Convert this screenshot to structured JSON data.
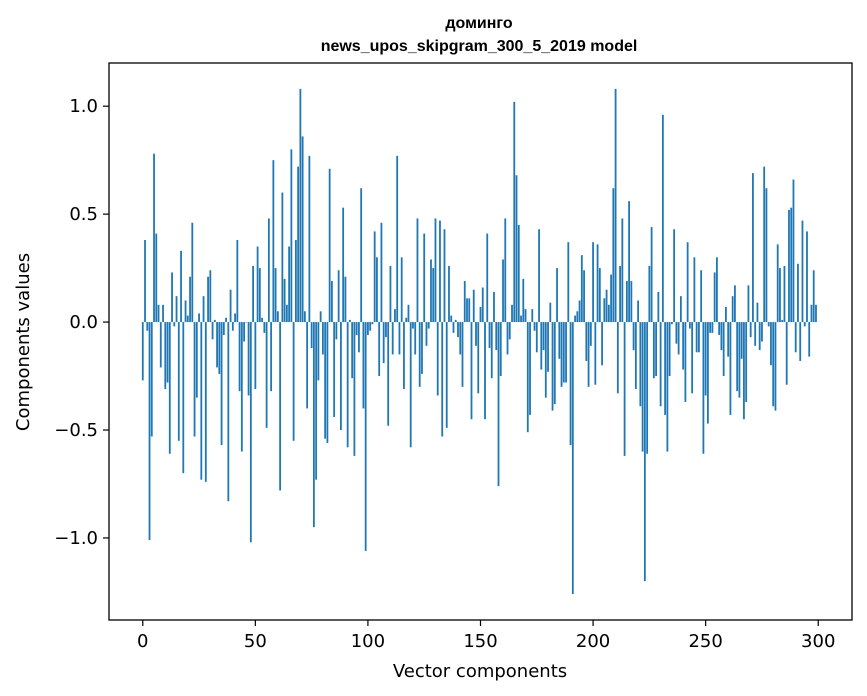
{
  "chart_data": {
    "type": "bar",
    "title_lines": [
      "доминго",
      "news_upos_skipgram_300_5_2019 model"
    ],
    "xlabel": "Vector components",
    "ylabel": "Components values",
    "xlim": [
      -15,
      315
    ],
    "ylim": [
      -1.38,
      1.2
    ],
    "xticks": [
      {
        "value": 0,
        "label": "0"
      },
      {
        "value": 50,
        "label": "50"
      },
      {
        "value": 100,
        "label": "100"
      },
      {
        "value": 150,
        "label": "150"
      },
      {
        "value": 200,
        "label": "200"
      },
      {
        "value": 250,
        "label": "250"
      },
      {
        "value": 300,
        "label": "300"
      }
    ],
    "yticks": [
      {
        "value": 1.0,
        "label": "1.0"
      },
      {
        "value": 0.5,
        "label": "0.5"
      },
      {
        "value": 0.0,
        "label": "0.0"
      },
      {
        "value": -0.5,
        "label": "−0.5"
      },
      {
        "value": -1.0,
        "label": "−1.0"
      }
    ],
    "grid": false,
    "bar_color": "#1f77b4",
    "values": [
      -0.27,
      0.38,
      -0.04,
      -1.01,
      -0.53,
      0.78,
      0.41,
      0.08,
      -0.21,
      0.08,
      -0.31,
      -0.28,
      -0.61,
      0.23,
      -0.02,
      0.12,
      -0.55,
      0.33,
      -0.7,
      0.1,
      0.03,
      0.21,
      0.46,
      -0.53,
      -0.35,
      0.04,
      -0.73,
      0.12,
      -0.74,
      0.21,
      0.24,
      -0.08,
      0.01,
      -0.21,
      -0.24,
      -0.57,
      -0.06,
      0.02,
      -0.83,
      0.15,
      -0.04,
      0.04,
      0.38,
      -0.32,
      -0.6,
      -0.09,
      0.0,
      -0.34,
      -1.02,
      0.26,
      -0.31,
      0.35,
      0.25,
      0.02,
      -0.05,
      -0.49,
      0.48,
      -0.32,
      0.75,
      0.25,
      0.05,
      -0.78,
      0.6,
      0.2,
      0.08,
      0.35,
      0.8,
      -0.55,
      0.38,
      0.72,
      1.08,
      0.86,
      0.05,
      -0.4,
      0.77,
      -0.12,
      -0.95,
      -0.73,
      -0.27,
      0.05,
      -0.15,
      -0.54,
      -0.56,
      0.71,
      0.19,
      -0.44,
      -0.08,
      0.24,
      -0.5,
      0.53,
      0.21,
      -0.58,
      0.01,
      -0.26,
      -0.62,
      -0.06,
      -0.14,
      0.62,
      -0.4,
      -1.06,
      -0.06,
      -0.04,
      -0.01,
      0.42,
      0.3,
      -0.25,
      0.46,
      -0.19,
      -0.07,
      -0.48,
      0.26,
      -0.15,
      0.06,
      0.77,
      -0.15,
      0.3,
      -0.31,
      0.02,
      0.08,
      -0.58,
      -0.03,
      -0.15,
      0.48,
      -0.3,
      -0.24,
      0.41,
      -0.11,
      -0.03,
      0.29,
      0.25,
      0.48,
      -0.34,
      0.47,
      -0.53,
      0.43,
      -0.49,
      0.26,
      0.03,
      -0.05,
      0.01,
      -0.07,
      -0.15,
      -0.3,
      0.19,
      0.11,
      0.11,
      -0.45,
      0.15,
      -0.11,
      -0.33,
      0.07,
      0.16,
      -0.45,
      0.41,
      -0.12,
      -0.26,
      0.14,
      -0.13,
      -0.76,
      -0.25,
      0.29,
      0.48,
      -0.15,
      -0.08,
      0.08,
      1.02,
      0.68,
      0.45,
      0.03,
      0.2,
      0.06,
      -0.51,
      -0.43,
      0.06,
      -0.04,
      -0.14,
      0.43,
      -0.22,
      -0.13,
      -0.35,
      -0.23,
      0.09,
      -0.41,
      -0.38,
      0.25,
      -0.17,
      -0.3,
      -0.28,
      -0.28,
      0.37,
      -0.57,
      -1.26,
      0.03,
      0.05,
      0.1,
      0.31,
      0.24,
      -0.18,
      -0.3,
      -0.11,
      0.37,
      -0.29,
      0.36,
      0.25,
      -0.2,
      0.11,
      0.15,
      0.08,
      0.22,
      0.62,
      1.08,
      -0.33,
      0.26,
      0.48,
      -0.62,
      0.19,
      0.56,
      0.19,
      -0.13,
      -0.31,
      0.1,
      -0.39,
      -0.6,
      -1.2,
      -0.61,
      0.26,
      0.44,
      -0.26,
      -0.25,
      0.14,
      -0.39,
      0.96,
      -0.43,
      -0.6,
      -0.25,
      -0.01,
      0.43,
      -0.1,
      -0.15,
      0.12,
      -0.22,
      -0.37,
      0.37,
      -0.03,
      -0.33,
      0.3,
      -0.14,
      -0.14,
      0.24,
      -0.61,
      -0.34,
      -0.47,
      -0.05,
      -0.05,
      0.23,
      0.3,
      -0.06,
      -0.13,
      -0.25,
      0.07,
      -0.16,
      -0.43,
      0.12,
      0.17,
      -0.32,
      -0.35,
      -0.17,
      -0.45,
      -0.37,
      0.17,
      -0.07,
      0.69,
      -0.11,
      0.09,
      -0.13,
      -0.09,
      0.72,
      0.62,
      -0.02,
      -0.2,
      -0.39,
      -0.41,
      0.36,
      0.25,
      0.01,
      0.26,
      -0.29,
      0.52,
      0.53,
      0.66,
      -0.14,
      0.27,
      -0.18,
      0.47,
      -0.02,
      0.42,
      -0.16,
      0.08,
      0.24,
      0.08
    ]
  }
}
